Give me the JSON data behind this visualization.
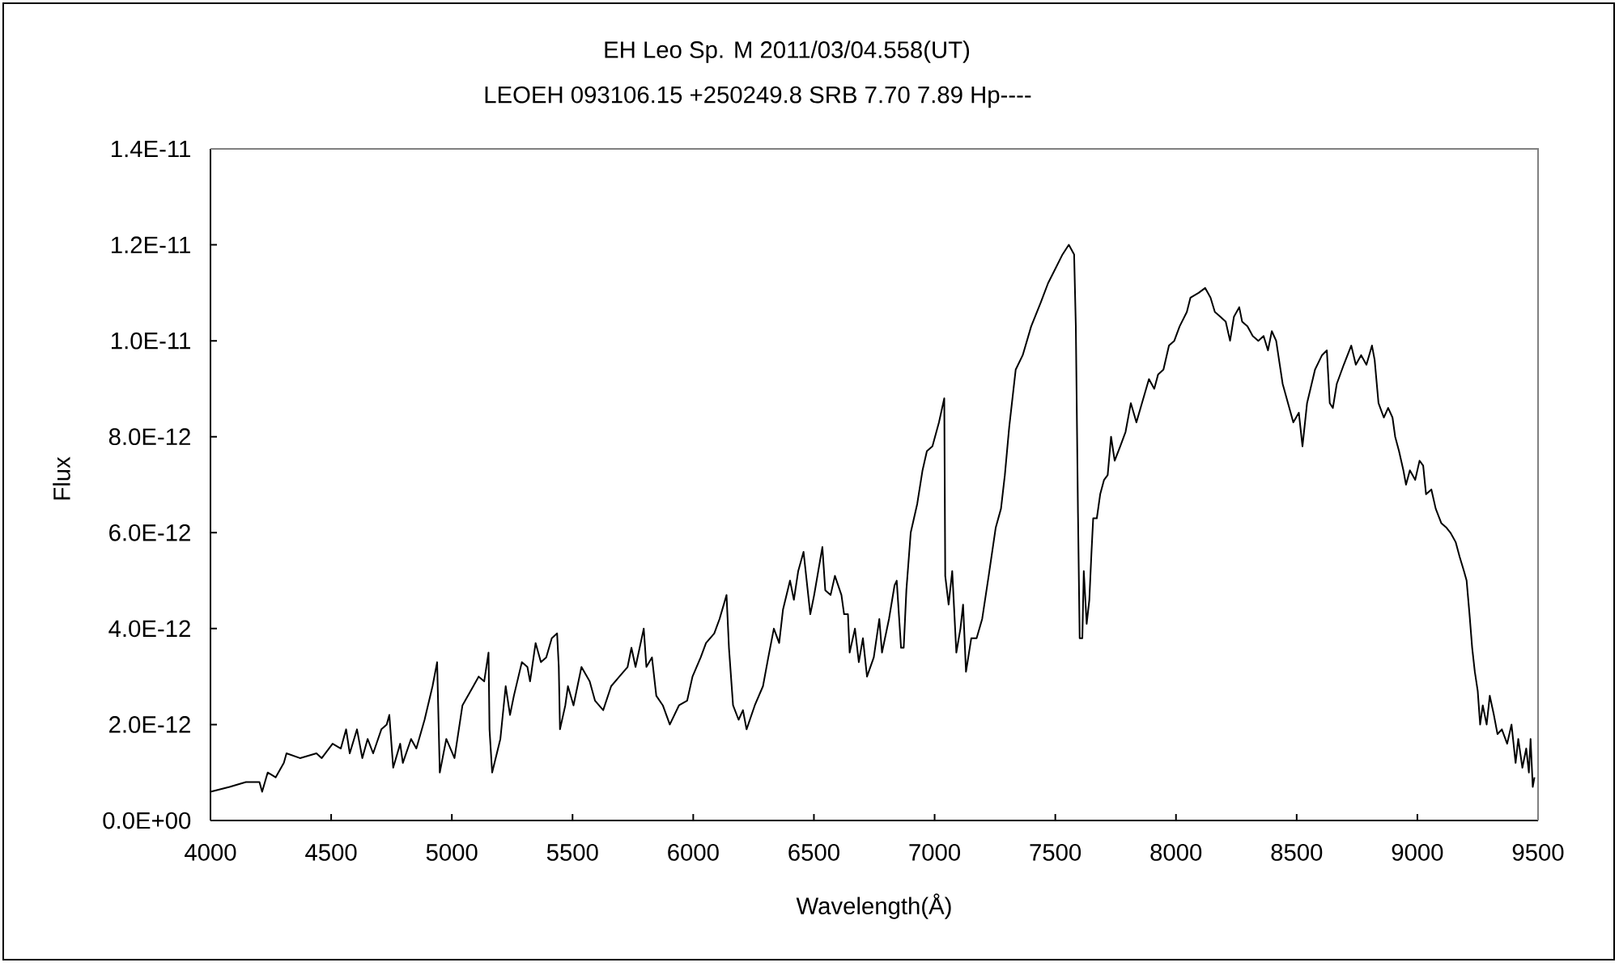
{
  "chart_data": {
    "type": "line",
    "title": "EH Leo Sp. M 2011/03/04.558(UT)",
    "subtitle": "LEOEH 093106.15 +250249.8 SRB 7.70 7.89 Hp----",
    "xlabel": "Wavelength(Å)",
    "ylabel": "Flux",
    "color": "#000000",
    "xlim": [
      4000,
      9500
    ],
    "xticks": [
      4000,
      4500,
      5000,
      5500,
      6000,
      6500,
      7000,
      7500,
      8000,
      8500,
      9000,
      9500
    ],
    "ylim": [
      0,
      1.4e-11
    ],
    "yticks": [
      {
        "value": 0,
        "label": "0.0E+00"
      },
      {
        "value": 2e-12,
        "label": "2.0E-12"
      },
      {
        "value": 4e-12,
        "label": "4.0E-12"
      },
      {
        "value": 6e-12,
        "label": "6.0E-12"
      },
      {
        "value": 8e-12,
        "label": "8.0E-12"
      },
      {
        "value": 1e-11,
        "label": "1.0E-11"
      },
      {
        "value": 1.2e-11,
        "label": "1.2E-11"
      },
      {
        "value": 1.4e-11,
        "label": "1.4E-11"
      }
    ],
    "x": [
      4000,
      4079,
      4147,
      4203,
      4214,
      4237,
      4270,
      4304,
      4315,
      4371,
      4439,
      4461,
      4506,
      4540,
      4562,
      4577,
      4607,
      4629,
      4651,
      4674,
      4708,
      4730,
      4741,
      4757,
      4786,
      4797,
      4831,
      4853,
      4887,
      4920,
      4939,
      4950,
      4977,
      5011,
      5044,
      5089,
      5111,
      5134,
      5152,
      5156,
      5167,
      5201,
      5223,
      5241,
      5257,
      5290,
      5313,
      5324,
      5347,
      5369,
      5391,
      5414,
      5436,
      5443,
      5448,
      5470,
      5481,
      5504,
      5537,
      5571,
      5593,
      5627,
      5660,
      5694,
      5728,
      5744,
      5761,
      5795,
      5806,
      5829,
      5847,
      5874,
      5903,
      5941,
      5975,
      5997,
      6031,
      6053,
      6087,
      6109,
      6138,
      6148,
      6165,
      6188,
      6206,
      6221,
      6255,
      6289,
      6311,
      6334,
      6356,
      6372,
      6401,
      6417,
      6435,
      6457,
      6485,
      6501,
      6535,
      6547,
      6569,
      6587,
      6614,
      6625,
      6641,
      6648,
      6670,
      6686,
      6703,
      6720,
      6748,
      6771,
      6782,
      6811,
      6834,
      6843,
      6861,
      6872,
      6883,
      6901,
      6928,
      6950,
      6968,
      6991,
      7018,
      7040,
      7044,
      7058,
      7073,
      7090,
      7107,
      7118,
      7130,
      7152,
      7174,
      7197,
      7224,
      7253,
      7275,
      7291,
      7309,
      7336,
      7365,
      7400,
      7440,
      7470,
      7500,
      7530,
      7556,
      7578,
      7585,
      7594,
      7601,
      7612,
      7618,
      7630,
      7641,
      7650,
      7657,
      7672,
      7686,
      7702,
      7717,
      7731,
      7746,
      7769,
      7791,
      7813,
      7836,
      7859,
      7888,
      7910,
      7926,
      7948,
      7971,
      7993,
      8015,
      8045,
      8060,
      8094,
      8121,
      8143,
      8161,
      8184,
      8206,
      8224,
      8240,
      8262,
      8274,
      8296,
      8318,
      8341,
      8363,
      8381,
      8397,
      8415,
      8430,
      8442,
      8464,
      8486,
      8509,
      8524,
      8543,
      8576,
      8605,
      8625,
      8637,
      8650,
      8666,
      8695,
      8726,
      8745,
      8767,
      8789,
      8812,
      8823,
      8839,
      8861,
      8879,
      8897,
      8908,
      8924,
      8942,
      8953,
      8969,
      8991,
      9009,
      9024,
      9036,
      9058,
      9076,
      9099,
      9121,
      9137,
      9159,
      9175,
      9193,
      9204,
      9216,
      9227,
      9238,
      9250,
      9260,
      9271,
      9287,
      9300,
      9317,
      9332,
      9350,
      9372,
      9390,
      9407,
      9418,
      9435,
      9451,
      9462,
      9469,
      9478,
      9485
    ],
    "values": [
      6e-13,
      7e-13,
      8e-13,
      8e-13,
      6e-13,
      1e-12,
      9e-13,
      1.2e-12,
      1.4e-12,
      1.3e-12,
      1.4e-12,
      1.3e-12,
      1.6e-12,
      1.5e-12,
      1.9e-12,
      1.4e-12,
      1.9e-12,
      1.3e-12,
      1.7e-12,
      1.4e-12,
      1.9e-12,
      2e-12,
      2.2e-12,
      1.1e-12,
      1.6e-12,
      1.2e-12,
      1.7e-12,
      1.5e-12,
      2.1e-12,
      2.8e-12,
      3.3e-12,
      1e-12,
      1.7e-12,
      1.3e-12,
      2.4e-12,
      2.8e-12,
      3e-12,
      2.9e-12,
      3.5e-12,
      1.9e-12,
      1e-12,
      1.7e-12,
      2.8e-12,
      2.2e-12,
      2.6e-12,
      3.3e-12,
      3.2e-12,
      2.9e-12,
      3.7e-12,
      3.3e-12,
      3.4e-12,
      3.8e-12,
      3.9e-12,
      3.2e-12,
      1.9e-12,
      2.4e-12,
      2.8e-12,
      2.4e-12,
      3.2e-12,
      2.9e-12,
      2.5e-12,
      2.3e-12,
      2.8e-12,
      3e-12,
      3.2e-12,
      3.6e-12,
      3.2e-12,
      4e-12,
      3.2e-12,
      3.4e-12,
      2.6e-12,
      2.4e-12,
      2e-12,
      2.4e-12,
      2.5e-12,
      3e-12,
      3.4e-12,
      3.7e-12,
      3.9e-12,
      4.2e-12,
      4.7e-12,
      3.6e-12,
      2.4e-12,
      2.1e-12,
      2.3e-12,
      1.9e-12,
      2.4e-12,
      2.8e-12,
      3.4e-12,
      4e-12,
      3.7e-12,
      4.4e-12,
      5e-12,
      4.6e-12,
      5.2e-12,
      5.6e-12,
      4.3e-12,
      4.7e-12,
      5.7e-12,
      4.8e-12,
      4.7e-12,
      5.1e-12,
      4.7e-12,
      4.3e-12,
      4.3e-12,
      3.5e-12,
      4e-12,
      3.3e-12,
      3.8e-12,
      3e-12,
      3.4e-12,
      4.2e-12,
      3.5e-12,
      4.2e-12,
      4.9e-12,
      5e-12,
      3.6e-12,
      3.6e-12,
      4.8e-12,
      6e-12,
      6.6e-12,
      7.3e-12,
      7.7e-12,
      7.8e-12,
      8.3e-12,
      8.8e-12,
      5.1e-12,
      4.5e-12,
      5.2e-12,
      3.5e-12,
      4e-12,
      4.5e-12,
      3.1e-12,
      3.8e-12,
      3.8e-12,
      4.2e-12,
      5.1e-12,
      6.1e-12,
      6.5e-12,
      7.2e-12,
      8.2e-12,
      9.4e-12,
      9.7e-12,
      1.03e-11,
      1.08e-11,
      1.12e-11,
      1.15e-11,
      1.18e-11,
      1.2e-11,
      1.18e-11,
      1.03e-11,
      6.4e-12,
      3.8e-12,
      3.8e-12,
      5.2e-12,
      4.1e-12,
      4.6e-12,
      5.6e-12,
      6.3e-12,
      6.3e-12,
      6.8e-12,
      7.1e-12,
      7.2e-12,
      8e-12,
      7.5e-12,
      7.8e-12,
      8.1e-12,
      8.7e-12,
      8.3e-12,
      8.7e-12,
      9.2e-12,
      9e-12,
      9.3e-12,
      9.4e-12,
      9.9e-12,
      1e-11,
      1.03e-11,
      1.06e-11,
      1.09e-11,
      1.1e-11,
      1.11e-11,
      1.09e-11,
      1.06e-11,
      1.05e-11,
      1.04e-11,
      1e-11,
      1.05e-11,
      1.07e-11,
      1.04e-11,
      1.03e-11,
      1.01e-11,
      1e-11,
      1.01e-11,
      9.8e-12,
      1.02e-11,
      1e-11,
      9.5e-12,
      9.1e-12,
      8.7e-12,
      8.3e-12,
      8.5e-12,
      7.8e-12,
      8.7e-12,
      9.4e-12,
      9.7e-12,
      9.8e-12,
      8.7e-12,
      8.6e-12,
      9.1e-12,
      9.5e-12,
      9.9e-12,
      9.5e-12,
      9.7e-12,
      9.5e-12,
      9.9e-12,
      9.6e-12,
      8.7e-12,
      8.4e-12,
      8.6e-12,
      8.4e-12,
      8e-12,
      7.7e-12,
      7.3e-12,
      7e-12,
      7.3e-12,
      7.1e-12,
      7.5e-12,
      7.4e-12,
      6.8e-12,
      6.9e-12,
      6.5e-12,
      6.2e-12,
      6.1e-12,
      6e-12,
      5.8e-12,
      5.5e-12,
      5.2e-12,
      5e-12,
      4.3e-12,
      3.6e-12,
      3.1e-12,
      2.7e-12,
      2e-12,
      2.4e-12,
      2e-12,
      2.6e-12,
      2.2e-12,
      1.8e-12,
      1.9e-12,
      1.6e-12,
      2e-12,
      1.2e-12,
      1.7e-12,
      1.1e-12,
      1.5e-12,
      1e-12,
      1.7e-12,
      7e-13,
      9e-13
    ]
  }
}
